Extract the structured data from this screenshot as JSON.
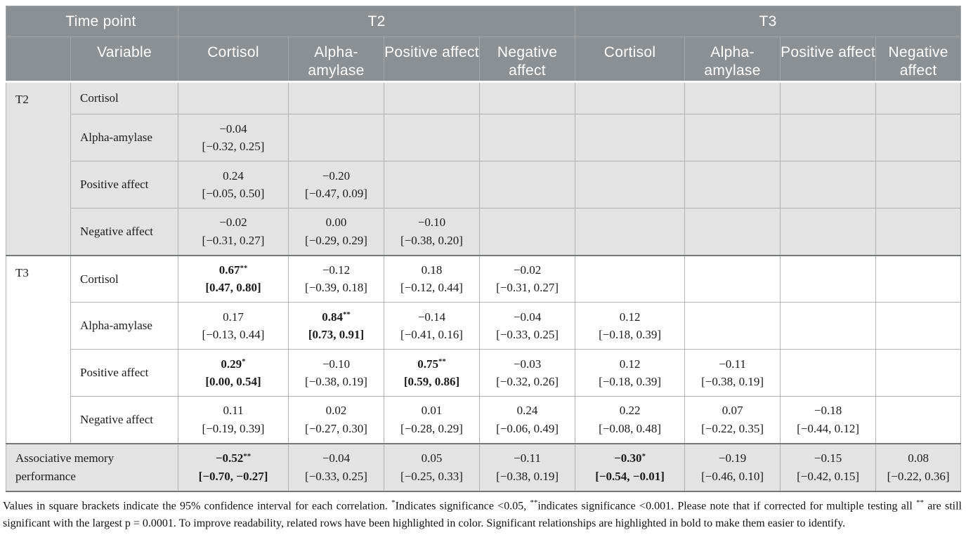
{
  "colors": {
    "header_bg": "#8b9094",
    "header_text": "#ffffff",
    "row_tinted_bg": "#e2e3e2",
    "row_plain_bg": "#ffffff",
    "grid_light": "#b1b3b3",
    "grid_dark": "#75787a"
  },
  "table": {
    "header": {
      "time_point_label": "Time point",
      "t2_label": "T2",
      "t3_label": "T3",
      "variable_label": "Variable",
      "columns": [
        "Cortisol",
        "Alpha-amylase",
        "Positive affect",
        "Negative affect",
        "Cortisol",
        "Alpha-amylase",
        "Positive affect",
        "Negative affect"
      ]
    },
    "groups": [
      {
        "label": "T2",
        "tinted": true,
        "rows": [
          {
            "variable": "Cortisol",
            "cells": [
              null,
              null,
              null,
              null,
              null,
              null,
              null,
              null
            ]
          },
          {
            "variable": "Alpha-amylase",
            "cells": [
              {
                "v": "−0.04",
                "ci": "[−0.32, 0.25]"
              },
              null,
              null,
              null,
              null,
              null,
              null,
              null
            ]
          },
          {
            "variable": "Positive affect",
            "cells": [
              {
                "v": "0.24",
                "ci": "[−0.05, 0.50]"
              },
              {
                "v": "−0.20",
                "ci": "[−0.47, 0.09]"
              },
              null,
              null,
              null,
              null,
              null,
              null
            ]
          },
          {
            "variable": "Negative affect",
            "cells": [
              {
                "v": "−0.02",
                "ci": "[−0.31, 0.27]"
              },
              {
                "v": "0.00",
                "ci": "[−0.29, 0.29]"
              },
              {
                "v": "−0.10",
                "ci": "[−0.38, 0.20]"
              },
              null,
              null,
              null,
              null,
              null
            ]
          }
        ]
      },
      {
        "label": "T3",
        "tinted": false,
        "rows": [
          {
            "variable": "Cortisol",
            "cells": [
              {
                "v": "0.67",
                "s": "**",
                "ci": "[0.47, 0.80]",
                "b": true
              },
              {
                "v": "−0.12",
                "ci": "[−0.39, 0.18]"
              },
              {
                "v": "0.18",
                "ci": "[−0.12, 0.44]"
              },
              {
                "v": "−0.02",
                "ci": "[−0.31, 0.27]"
              },
              null,
              null,
              null,
              null
            ]
          },
          {
            "variable": "Alpha-amylase",
            "cells": [
              {
                "v": "0.17",
                "ci": "[−0.13, 0.44]"
              },
              {
                "v": "0.84",
                "s": "**",
                "ci": "[0.73, 0.91]",
                "b": true
              },
              {
                "v": "−0.14",
                "ci": "[−0.41, 0.16]"
              },
              {
                "v": "−0.04",
                "ci": "[−0.33, 0.25]"
              },
              {
                "v": "0.12",
                "ci": "[−0.18, 0.39]"
              },
              null,
              null,
              null
            ]
          },
          {
            "variable": "Positive affect",
            "cells": [
              {
                "v": "0.29",
                "s": "*",
                "ci": "[0.00, 0.54]",
                "b": true
              },
              {
                "v": "−0.10",
                "ci": "[−0.38, 0.19]"
              },
              {
                "v": "0.75",
                "s": "**",
                "ci": "[0.59, 0.86]",
                "b": true
              },
              {
                "v": "−0.03",
                "ci": "[−0.32, 0.26]"
              },
              {
                "v": "0.12",
                "ci": "[−0.18, 0.39]"
              },
              {
                "v": "−0.11",
                "ci": "[−0.38, 0.19]"
              },
              null,
              null
            ]
          },
          {
            "variable": "Negative affect",
            "cells": [
              {
                "v": "0.11",
                "ci": "[−0.19, 0.39]"
              },
              {
                "v": "0.02",
                "ci": "[−0.27, 0.30]"
              },
              {
                "v": "0.01",
                "ci": "[−0.28, 0.29]"
              },
              {
                "v": "0.24",
                "ci": "[−0.06, 0.49]"
              },
              {
                "v": "0.22",
                "ci": "[−0.08, 0.48]"
              },
              {
                "v": "0.07",
                "ci": "[−0.22, 0.35]"
              },
              {
                "v": "−0.18",
                "ci": "[−0.44, 0.12]"
              },
              null
            ]
          }
        ]
      }
    ],
    "summary_row": {
      "label": "Associative memory performance",
      "tinted": true,
      "cells": [
        {
          "v": "−0.52",
          "s": "**",
          "ci": "[−0.70, −0.27]",
          "b": true
        },
        {
          "v": "−0.04",
          "ci": "[−0.33, 0.25]"
        },
        {
          "v": "0.05",
          "ci": "[−0.25, 0.33]"
        },
        {
          "v": "−0.11",
          "ci": "[−0.38, 0.19]"
        },
        {
          "v": "−0.30",
          "s": "*",
          "ci": "[−0.54, −0.01]",
          "b": true
        },
        {
          "v": "−0.19",
          "ci": "[−0.46, 0.10]"
        },
        {
          "v": "−0.15",
          "ci": "[−0.42, 0.15]"
        },
        {
          "v": "0.08",
          "ci": "[−0.22, 0.36]"
        }
      ]
    }
  },
  "footnote": {
    "segments": [
      {
        "t": "Values in square brackets indicate the 95% confidence interval for each correlation. "
      },
      {
        "t": "*",
        "style": "sup"
      },
      {
        "t": "Indicates significance <0.05, "
      },
      {
        "t": "**",
        "style": "sup"
      },
      {
        "t": "indicates significance <0.001. Please note that if corrected for multiple testing all "
      },
      {
        "t": "**",
        "style": "sup"
      },
      {
        "t": " are still significant with the largest p = 0.0001. To improve readability, related rows have been highlighted in color. Significant relationships are highlighted in bold to make them easier to identify."
      }
    ]
  }
}
